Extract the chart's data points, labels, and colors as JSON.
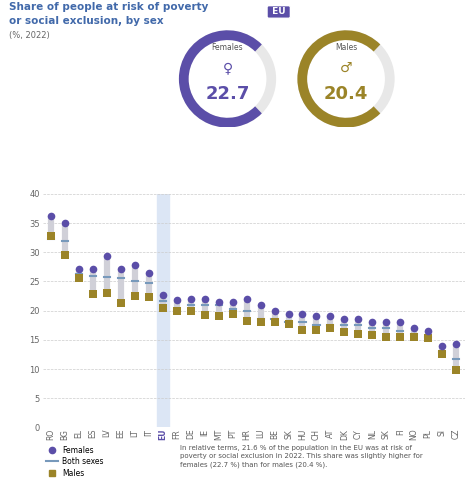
{
  "title_line1": "Share of people at risk of poverty",
  "title_line2": "or social exclusion, by sex",
  "subtitle": "(%, 2022)",
  "countries": [
    "RO",
    "BG",
    "EL",
    "ES",
    "LV",
    "EE",
    "LT",
    "IT",
    "EU",
    "FR",
    "DE",
    "IE",
    "MT",
    "PT",
    "HR",
    "LU",
    "BE",
    "SK",
    "HU",
    "CH",
    "AT",
    "DK",
    "CY",
    "NL",
    "SK",
    "FI",
    "NO",
    "PL",
    "SI",
    "CZ"
  ],
  "females": [
    36.2,
    35.0,
    27.2,
    27.2,
    29.3,
    27.2,
    27.8,
    26.5,
    22.7,
    21.8,
    22.0,
    22.0,
    21.5,
    21.5,
    22.0,
    21.0,
    20.0,
    19.5,
    19.5,
    19.0,
    19.0,
    18.5,
    18.5,
    18.0,
    18.0,
    18.0,
    17.0,
    16.5,
    14.0,
    14.2
  ],
  "both_sexes": [
    32.2,
    32.0,
    26.3,
    25.9,
    25.7,
    25.6,
    25.0,
    24.7,
    21.6,
    20.0,
    21.0,
    21.0,
    21.0,
    20.3,
    20.0,
    18.5,
    18.5,
    18.0,
    18.0,
    17.5,
    17.5,
    17.5,
    17.5,
    17.0,
    17.0,
    16.5,
    16.0,
    15.5,
    13.0,
    11.8
  ],
  "males": [
    32.8,
    29.6,
    25.6,
    22.9,
    23.0,
    21.3,
    22.5,
    22.3,
    20.4,
    19.9,
    19.9,
    19.3,
    19.1,
    19.4,
    18.2,
    18.1,
    18.0,
    17.7,
    16.6,
    16.6,
    17.0,
    16.3,
    16.0,
    15.8,
    15.5,
    15.5,
    15.5,
    15.3,
    12.6,
    9.8
  ],
  "female_color": "#5b4ea8",
  "both_color": "#7799bb",
  "male_color": "#9b8428",
  "eu_highlight_color": "#dce6f5",
  "eu_index": 8,
  "ylim": [
    0,
    40
  ],
  "yticks": [
    0,
    5,
    10,
    15,
    20,
    25,
    30,
    35,
    40
  ],
  "eu_female": 22.7,
  "eu_male": 20.4,
  "background_color": "#ffffff",
  "grid_color": "#cccccc",
  "title_color": "#4169aa",
  "bar_gray": "#d0d0d8"
}
